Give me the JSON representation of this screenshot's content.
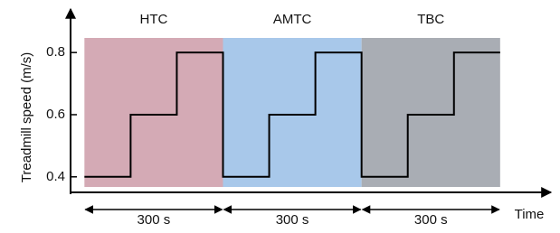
{
  "chart_data": {
    "type": "line",
    "xlabel": "Time",
    "ylabel": "Treadmill speed (m/s)",
    "x": [
      0,
      100,
      100,
      200,
      200,
      300,
      300,
      400,
      400,
      500,
      500,
      600,
      600,
      700,
      700,
      800,
      800,
      900
    ],
    "values": [
      0.4,
      0.4,
      0.6,
      0.6,
      0.8,
      0.8,
      0.4,
      0.4,
      0.6,
      0.6,
      0.8,
      0.8,
      0.4,
      0.4,
      0.6,
      0.6,
      0.8,
      0.8
    ],
    "color": "#000000",
    "xlim": [
      -30,
      1010
    ],
    "ylim": [
      0.35,
      0.94
    ],
    "yticks": [
      0.4,
      0.6,
      0.8
    ],
    "regions": [
      {
        "label": "HTC",
        "start": 0,
        "end": 300,
        "color": "#d4aab5",
        "duration_label": "300 s"
      },
      {
        "label": "AMTC",
        "start": 300,
        "end": 600,
        "color": "#a8c8ea",
        "duration_label": "300 s"
      },
      {
        "label": "TBC",
        "start": 600,
        "end": 900,
        "color": "#a9adb4",
        "duration_label": "300 s"
      }
    ]
  }
}
